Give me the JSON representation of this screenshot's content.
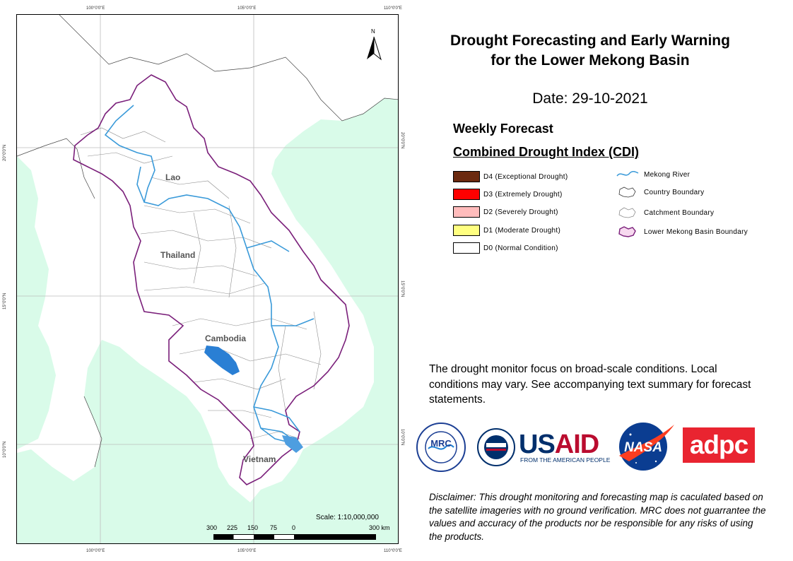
{
  "map": {
    "graticule": {
      "top": [
        "100°0'0\"E",
        "105°0'0\"E",
        "110°0'0\"E"
      ],
      "bottom": [
        "100°0'0\"E",
        "105°0'0\"E",
        "110°0'0\"E"
      ],
      "left": [
        "20°0'0\"N",
        "15°0'0\"N",
        "10°0'0\"N"
      ],
      "right": [
        "20°0'0\"N",
        "15°0'0\"N",
        "10°0'0\"N"
      ]
    },
    "countries": {
      "lao": "Lao",
      "thailand": "Thailand",
      "cambodia": "Cambodia",
      "vietnam": "Vietnam"
    },
    "north_letter": "N",
    "scale_text": "Scale: 1:10,000,000",
    "scale_ticks": [
      "300",
      "225",
      "150",
      "75",
      "0",
      "300  km"
    ],
    "colors": {
      "sea": "#d9fbe9",
      "land": "#ffffff",
      "river": "#3a9ad9",
      "lake": "#2a7fd4",
      "basin_boundary": "#7a1f7a",
      "catchment": "#8c8c8c"
    }
  },
  "title_line1": "Drought Forecasting and Early Warning",
  "title_line2": "for the Lower Mekong Basin",
  "date_label": "Date: 29-10-2021",
  "weekly_label": "Weekly Forecast",
  "cdi_label": "Combined Drought Index (CDI)",
  "legend": {
    "classes": [
      {
        "label": "D4 (Exceptional Drought)",
        "color": "#6b2a10"
      },
      {
        "label": "D3 (Extremely Drought)",
        "color": "#ff0000"
      },
      {
        "label": "D2 (Severely Drought)",
        "color": "#ffbcbc"
      },
      {
        "label": "D1 (Moderate Drought)",
        "color": "#ffff80"
      },
      {
        "label": "D0 (Normal Condition)",
        "color": "#ffffff"
      }
    ],
    "symbols": [
      {
        "label": "Mekong River",
        "icon": "river-line-icon"
      },
      {
        "label": "Country Boundary",
        "icon": "country-outline-icon"
      },
      {
        "label": "Catchment Boundary",
        "icon": "catchment-outline-icon"
      },
      {
        "label": "Lower Mekong Basin Boundary",
        "icon": "basin-outline-icon"
      }
    ]
  },
  "info_text": "The drought monitor focus on broad-scale conditions. Local conditions may vary. See accompanying text summary for forecast statements.",
  "logos": {
    "mrc_abbr": "MRC",
    "usaid_us": "US",
    "usaid_aid": "AID",
    "usaid_sub": "FROM THE AMERICAN PEOPLE",
    "nasa": "NASA",
    "adpc": "adpc"
  },
  "disclaimer": "Disclaimer: This drought monitoring and forecasting map is caculated based on the satellite imageries with no ground verification. MRC does not guarrantee the values and accuracy of the products nor be responsible for any risks of using the products."
}
